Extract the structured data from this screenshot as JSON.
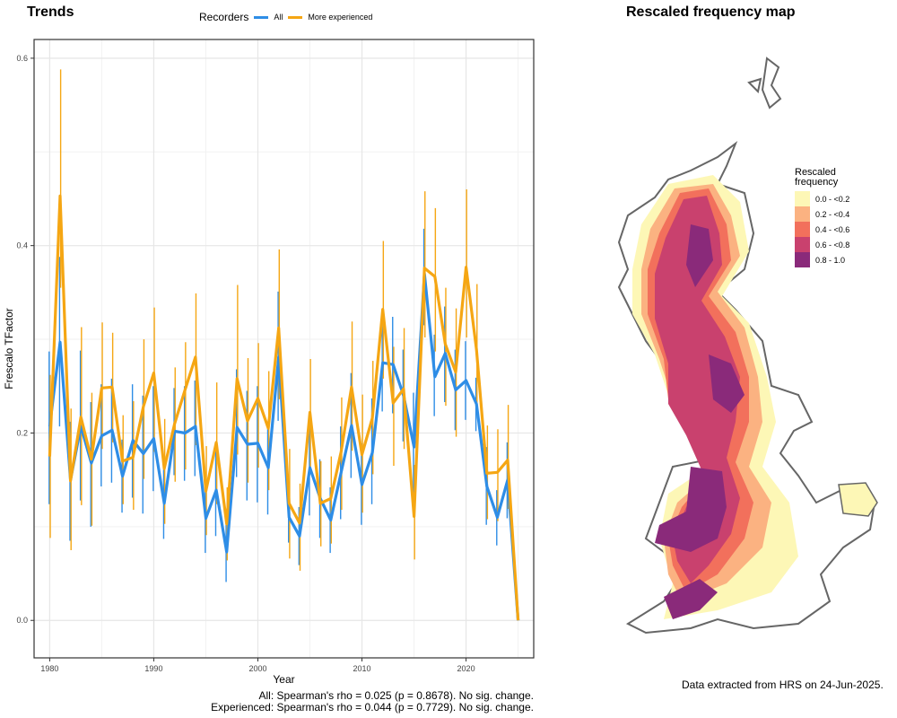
{
  "trends": {
    "title": "Trends",
    "legend": {
      "title": "Recorders",
      "items": [
        "All",
        "More experienced"
      ]
    },
    "stats": [
      "All: Spearman's rho = 0.025 (p = 0.8678). No sig. change.",
      "Experienced: Spearman's rho = 0.044 (p = 0.7729). No sig. change."
    ]
  },
  "map": {
    "title": "Rescaled frequency map",
    "legend_title": "Rescaled frequency",
    "legend_items": [
      "0.0 - <0.2",
      "0.2 - <0.4",
      "0.4 - <0.6",
      "0.6 - <0.8",
      "0.8 - 1.0"
    ],
    "legend_colors": [
      "#fdf7b6",
      "#fbb281",
      "#f2705c",
      "#c9416e",
      "#8a2a7a"
    ],
    "note": "Data extracted from HRS on 24-Jun-2025."
  },
  "chart_data": {
    "type": "line",
    "xlabel": "Year",
    "ylabel": "Frescalo TFactor",
    "xlim": [
      1978.5,
      2026.5
    ],
    "ylim": [
      -0.04,
      0.62
    ],
    "xticks": [
      1980,
      1990,
      2000,
      2010,
      2020
    ],
    "yticks": [
      0.0,
      0.2,
      0.4,
      0.6
    ],
    "ytick_labels": [
      "0.0",
      "0.2",
      "0.4",
      "0.6"
    ],
    "grid": true,
    "colors": {
      "All": "#2e8de6",
      "More experienced": "#f5a613"
    },
    "x": [
      1980,
      1981,
      1982,
      1983,
      1984,
      1985,
      1986,
      1987,
      1988,
      1989,
      1990,
      1991,
      1992,
      1993,
      1994,
      1995,
      1996,
      1997,
      1998,
      1999,
      2000,
      2001,
      2002,
      2003,
      2004,
      2005,
      2006,
      2007,
      2008,
      2009,
      2010,
      2011,
      2012,
      2013,
      2014,
      2015,
      2016,
      2017,
      2018,
      2019,
      2020,
      2021,
      2022,
      2023,
      2024,
      2025
    ],
    "series": [
      {
        "name": "All",
        "values": [
          0.207,
          0.297,
          0.15,
          0.207,
          0.168,
          0.197,
          0.203,
          0.154,
          0.192,
          0.178,
          0.194,
          0.125,
          0.202,
          0.2,
          0.207,
          0.109,
          0.139,
          0.073,
          0.206,
          0.188,
          0.189,
          0.163,
          0.281,
          0.11,
          0.09,
          0.163,
          0.13,
          0.107,
          0.158,
          0.208,
          0.145,
          0.179,
          0.275,
          0.273,
          0.24,
          0.185,
          0.37,
          0.26,
          0.285,
          0.246,
          0.256,
          0.231,
          0.143,
          0.11,
          0.15,
          0.0
        ],
        "lower": [
          0.124,
          0.207,
          0.085,
          0.128,
          0.1,
          0.143,
          0.147,
          0.115,
          0.131,
          0.114,
          0.138,
          0.087,
          0.155,
          0.149,
          0.154,
          0.072,
          0.09,
          0.041,
          0.153,
          0.128,
          0.126,
          0.113,
          0.213,
          0.083,
          0.059,
          0.112,
          0.088,
          0.072,
          0.108,
          0.152,
          0.102,
          0.124,
          0.223,
          0.221,
          0.191,
          0.129,
          0.315,
          0.218,
          0.233,
          0.203,
          0.214,
          0.202,
          0.102,
          0.08,
          0.109,
          0.0
        ],
        "upper": [
          0.287,
          0.388,
          0.212,
          0.288,
          0.233,
          0.252,
          0.258,
          0.193,
          0.252,
          0.24,
          0.25,
          0.161,
          0.248,
          0.25,
          0.256,
          0.147,
          0.189,
          0.102,
          0.268,
          0.245,
          0.25,
          0.211,
          0.351,
          0.137,
          0.121,
          0.214,
          0.172,
          0.142,
          0.207,
          0.264,
          0.189,
          0.237,
          0.327,
          0.324,
          0.289,
          0.243,
          0.418,
          0.305,
          0.335,
          0.289,
          0.298,
          0.259,
          0.185,
          0.139,
          0.19,
          0.0
        ]
      },
      {
        "name": "More experienced",
        "values": [
          0.175,
          0.453,
          0.149,
          0.217,
          0.172,
          0.248,
          0.249,
          0.17,
          0.174,
          0.228,
          0.264,
          0.162,
          0.21,
          0.246,
          0.281,
          0.138,
          0.19,
          0.103,
          0.258,
          0.213,
          0.237,
          0.205,
          0.312,
          0.125,
          0.104,
          0.222,
          0.125,
          0.13,
          0.18,
          0.249,
          0.177,
          0.216,
          0.332,
          0.232,
          0.247,
          0.111,
          0.376,
          0.367,
          0.295,
          0.265,
          0.377,
          0.289,
          0.157,
          0.158,
          0.171,
          0.0
        ],
        "lower": [
          0.088,
          0.355,
          0.075,
          0.123,
          0.101,
          0.183,
          0.19,
          0.124,
          0.118,
          0.151,
          0.18,
          0.103,
          0.148,
          0.161,
          0.187,
          0.091,
          0.124,
          0.064,
          0.177,
          0.147,
          0.163,
          0.139,
          0.236,
          0.066,
          0.053,
          0.156,
          0.079,
          0.082,
          0.118,
          0.181,
          0.115,
          0.156,
          0.258,
          0.165,
          0.183,
          0.065,
          0.302,
          0.287,
          0.229,
          0.196,
          0.302,
          0.221,
          0.108,
          0.106,
          0.119,
          0.0
        ],
        "upper": [
          0.262,
          0.588,
          0.226,
          0.313,
          0.243,
          0.318,
          0.307,
          0.219,
          0.234,
          0.3,
          0.334,
          0.215,
          0.27,
          0.297,
          0.349,
          0.186,
          0.254,
          0.142,
          0.358,
          0.28,
          0.296,
          0.266,
          0.396,
          0.183,
          0.146,
          0.279,
          0.17,
          0.175,
          0.238,
          0.319,
          0.241,
          0.277,
          0.405,
          0.292,
          0.312,
          0.166,
          0.458,
          0.44,
          0.355,
          0.333,
          0.46,
          0.359,
          0.208,
          0.204,
          0.23,
          0.0
        ]
      }
    ]
  }
}
